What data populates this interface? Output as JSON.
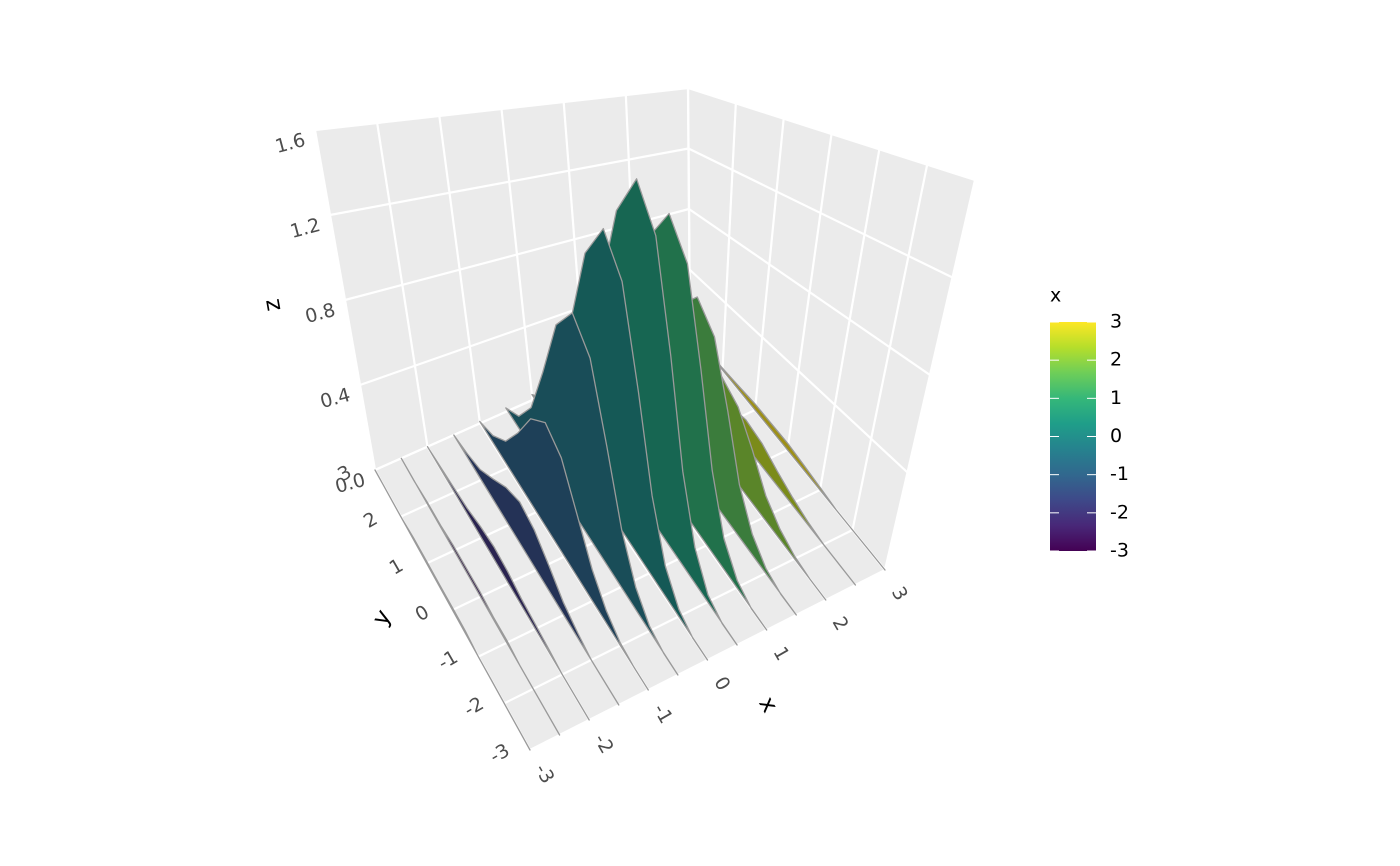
{
  "chart_data": {
    "type": "ridge3d",
    "x_label": "x",
    "y_label": "y",
    "z_label": "z",
    "xlim": [
      -3,
      3
    ],
    "ylim": [
      -3,
      3
    ],
    "zlim": [
      0,
      1.6
    ],
    "xticks": [
      -3,
      -2,
      -1,
      0,
      1,
      2,
      3
    ],
    "yticks": [
      -3,
      -2,
      -1,
      0,
      1,
      2,
      3
    ],
    "zticks": [
      {
        "value": 0,
        "label": "0.0"
      },
      0.4,
      0.8,
      1.2,
      1.6
    ],
    "grid": true,
    "colormap": [
      "#440154",
      "#482878",
      "#3e4989",
      "#31688e",
      "#26828e",
      "#1f9e89",
      "#35b779",
      "#6ece58",
      "#b5de2b",
      "#fde725"
    ],
    "colorbar": {
      "title": "x",
      "lim": [
        -3,
        3
      ],
      "ticks": [
        -3,
        -2,
        -1,
        0,
        1,
        2,
        3
      ]
    },
    "y": [
      -3,
      -2.5,
      -2,
      -1.5,
      -1,
      -0.5,
      0,
      0.5,
      1,
      1.5,
      2,
      2.5,
      3
    ],
    "series": [
      {
        "x": -3,
        "values": [
          0,
          0,
          0,
          0,
          0,
          0.01,
          0.01,
          0.01,
          0.01,
          0.01,
          0,
          0,
          0
        ]
      },
      {
        "x": -2.5,
        "values": [
          0,
          0,
          0,
          0,
          0.01,
          0.01,
          0.02,
          0.02,
          0.02,
          0.01,
          0.01,
          0,
          0
        ]
      },
      {
        "x": -2,
        "values": [
          0,
          0,
          0,
          0.01,
          0.02,
          0.03,
          0.05,
          0.06,
          0.05,
          0.03,
          0.02,
          0.01,
          0
        ]
      },
      {
        "x": -1.5,
        "values": [
          0,
          0,
          0,
          0.02,
          0.05,
          0.11,
          0.17,
          0.2,
          0.17,
          0.11,
          0.05,
          0.02,
          0
        ]
      },
      {
        "x": -1,
        "values": [
          0,
          0,
          0.01,
          0.05,
          0.13,
          0.27,
          0.43,
          0.5,
          0.43,
          0.27,
          0.13,
          0.05,
          0.01
        ]
      },
      {
        "x": -0.5,
        "values": [
          0,
          0,
          0.02,
          0.09,
          0.24,
          0.51,
          0.82,
          0.95,
          0.82,
          0.51,
          0.24,
          0.09,
          0.02
        ]
      },
      {
        "x": 0,
        "values": [
          0,
          0,
          0.03,
          0.12,
          0.33,
          0.7,
          1.12,
          1.3,
          1.12,
          0.7,
          0.33,
          0.12,
          0.03
        ]
      },
      {
        "x": 0.5,
        "values": [
          0,
          0,
          0.03,
          0.14,
          0.38,
          0.81,
          1.29,
          1.5,
          1.29,
          0.81,
          0.38,
          0.14,
          0.03
        ]
      },
      {
        "x": 1,
        "values": [
          0,
          0,
          0.03,
          0.12,
          0.33,
          0.7,
          1.12,
          1.3,
          1.12,
          0.7,
          0.33,
          0.12,
          0.03
        ]
      },
      {
        "x": 1.5,
        "values": [
          0,
          0,
          0.02,
          0.08,
          0.21,
          0.46,
          0.73,
          0.85,
          0.73,
          0.46,
          0.21,
          0.08,
          0.02
        ]
      },
      {
        "x": 2,
        "values": [
          0,
          0,
          0.01,
          0.04,
          0.1,
          0.22,
          0.34,
          0.4,
          0.34,
          0.22,
          0.1,
          0.04,
          0.01
        ]
      },
      {
        "x": 2.5,
        "values": [
          0,
          0,
          0,
          0.01,
          0.03,
          0.06,
          0.1,
          0.12,
          0.1,
          0.06,
          0.03,
          0.01,
          0
        ]
      },
      {
        "x": 3,
        "values": [
          0,
          0,
          0,
          0,
          0.01,
          0.02,
          0.03,
          0.03,
          0.03,
          0.02,
          0.01,
          0,
          0
        ]
      }
    ]
  }
}
